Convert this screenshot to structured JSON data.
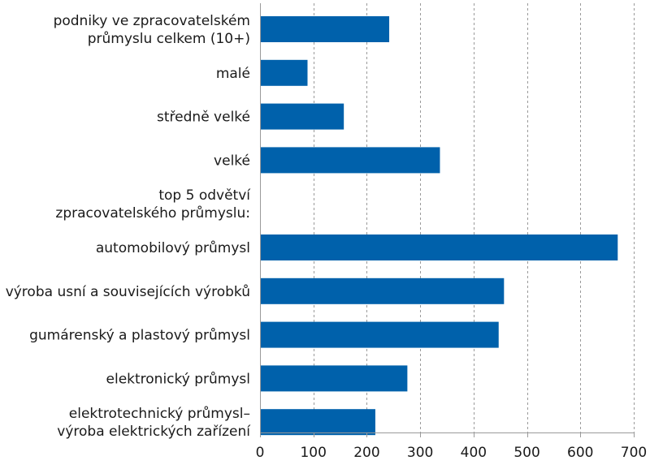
{
  "chart_data": {
    "type": "bar",
    "orientation": "horizontal",
    "categories": [
      [
        "podniky ve zpracovatelském",
        "průmyslu celkem (10+)"
      ],
      [
        "malé"
      ],
      [
        "středně velké"
      ],
      [
        "velké"
      ],
      [
        "top 5 odvětví",
        "zpracovatelského průmyslu:"
      ],
      [
        "automobilový průmysl"
      ],
      [
        "výroba usní a souvisejících výrobků"
      ],
      [
        "gumárenský a plastový průmysl"
      ],
      [
        "elektronický průmysl"
      ],
      [
        "elektrotechnický průmysl–",
        "výroba elektrických zařízení"
      ]
    ],
    "values": [
      242,
      89,
      157,
      337,
      null,
      670,
      457,
      447,
      276,
      216
    ],
    "xlim": [
      0,
      700
    ],
    "xticks": [
      0,
      100,
      200,
      300,
      400,
      500,
      600,
      700
    ],
    "grid": "vertical-dashed",
    "colors": {
      "bar": "#0061ab",
      "grid": "#9a9a9a",
      "text": "#1a1a1a"
    }
  }
}
